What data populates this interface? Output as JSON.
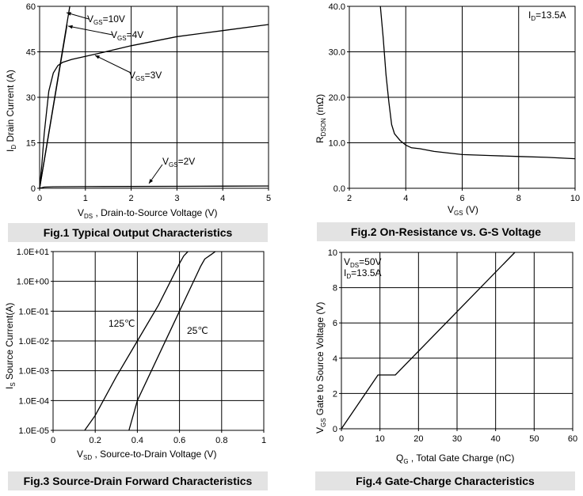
{
  "chart_data": [
    {
      "type": "line",
      "title": "Fig.1 Typical Output Characteristics",
      "xlabel": "V_DS , Drain-to-Source Voltage (V)",
      "ylabel": "I_D Drain Current (A)",
      "xlim": [
        0,
        5
      ],
      "ylim": [
        0,
        60
      ],
      "xticks": [
        "0",
        "1",
        "2",
        "3",
        "4",
        "5"
      ],
      "yticks": [
        "0",
        "15",
        "30",
        "45",
        "60"
      ],
      "series": [
        {
          "name": "VGS=10V",
          "x": [
            0,
            0.66
          ],
          "y": [
            0,
            60
          ]
        },
        {
          "name": "VGS=4V",
          "x": [
            0,
            0.6
          ],
          "y": [
            0,
            54
          ]
        },
        {
          "name": "VGS=3V",
          "x": [
            0,
            0.05,
            0.1,
            0.2,
            0.3,
            0.4,
            0.5,
            0.7,
            1.0,
            1.3,
            2.0,
            3.0,
            4.0,
            5.0
          ],
          "y": [
            0,
            8,
            18,
            32,
            38,
            40.5,
            41.5,
            42.5,
            43.5,
            44.5,
            47,
            50,
            52,
            54
          ]
        },
        {
          "name": "VGS=2V",
          "x": [
            0,
            0.1,
            0.3,
            1,
            2,
            3,
            4,
            5
          ],
          "y": [
            0,
            0.4,
            0.5,
            0.55,
            0.6,
            0.65,
            0.7,
            0.75
          ]
        }
      ],
      "annotations": [
        {
          "base": "V",
          "sub": "GS",
          "rest": "=10V"
        },
        {
          "base": "V",
          "sub": "GS",
          "rest": "=4V"
        },
        {
          "base": "V",
          "sub": "GS",
          "rest": "=3V"
        },
        {
          "base": "V",
          "sub": "GS",
          "rest": "=2V"
        }
      ]
    },
    {
      "type": "line",
      "title": "Fig.2 On-Resistance vs. G-S Voltage",
      "xlabel": "V_GS (V)",
      "ylabel": "R_DSON (mΩ)",
      "xlim": [
        2,
        10
      ],
      "ylim": [
        0,
        40
      ],
      "xticks": [
        "2",
        "4",
        "6",
        "8",
        "10"
      ],
      "yticks": [
        "0.0",
        "10.0",
        "20.0",
        "30.0",
        "40.0"
      ],
      "series": [
        {
          "name": "RDSON",
          "x": [
            3.1,
            3.2,
            3.3,
            3.4,
            3.5,
            3.6,
            3.8,
            4.0,
            4.2,
            4.5,
            5.0,
            6.0,
            7.0,
            8.0,
            9.0,
            10.0
          ],
          "y": [
            40,
            33,
            25,
            19,
            14,
            12,
            10.5,
            9.5,
            8.9,
            8.7,
            8.1,
            7.4,
            7.2,
            7.0,
            6.8,
            6.5
          ]
        }
      ],
      "annotations": [
        {
          "base": "I",
          "sub": "D",
          "rest": "=13.5A"
        }
      ]
    },
    {
      "type": "line",
      "title": "Fig.3 Source-Drain Forward Characteristics",
      "xlabel": "V_SD , Source-to-Drain Voltage (V)",
      "ylabel": "I_S Source Current(A)",
      "xlim": [
        0,
        1
      ],
      "ylim_log10": [
        -5,
        1
      ],
      "xticks": [
        "0",
        "0.2",
        "0.4",
        "0.6",
        "0.8",
        "1"
      ],
      "yticks": [
        "1.0E-05",
        "1.0E-04",
        "1.0E-03",
        "1.0E-02",
        "1.0E-01",
        "1.0E+00",
        "1.0E+01"
      ],
      "series": [
        {
          "name": "125°C",
          "x": [
            0.15,
            0.2,
            0.3,
            0.4,
            0.5,
            0.55,
            0.6,
            0.62,
            0.64
          ],
          "y_log10": [
            -5,
            -4.5,
            -3.2,
            -2,
            -0.8,
            -0.1,
            0.6,
            0.85,
            1
          ]
        },
        {
          "name": "25°C",
          "x": [
            0.36,
            0.4,
            0.5,
            0.6,
            0.68,
            0.7,
            0.72,
            0.75,
            0.77
          ],
          "y_log10": [
            -5,
            -4,
            -2.5,
            -1,
            0.2,
            0.5,
            0.75,
            0.9,
            1
          ]
        }
      ],
      "annotations": [
        {
          "text": "125℃"
        },
        {
          "text": "25℃"
        }
      ]
    },
    {
      "type": "line",
      "title": "Fig.4 Gate-Charge Characteristics",
      "xlabel": "Q_G , Total Gate Charge (nC)",
      "ylabel": "V_GS Gate to Source Voltage (V)",
      "xlim": [
        0,
        60
      ],
      "ylim": [
        0,
        10
      ],
      "xticks": [
        "0",
        "10",
        "20",
        "30",
        "40",
        "50",
        "60"
      ],
      "yticks": [
        "0",
        "2",
        "4",
        "6",
        "8",
        "10"
      ],
      "series": [
        {
          "name": "VGS",
          "x": [
            0,
            9.5,
            14,
            45
          ],
          "y": [
            0,
            3.05,
            3.05,
            10
          ]
        }
      ],
      "annotations": [
        {
          "base": "V",
          "sub": "DS",
          "rest": "=50V"
        },
        {
          "base": "I",
          "sub": "D",
          "rest": "=13.5A"
        }
      ]
    }
  ]
}
